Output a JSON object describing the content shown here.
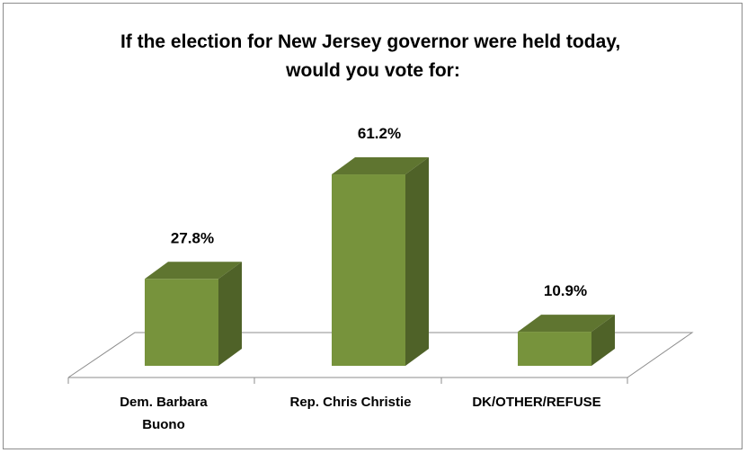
{
  "chart_data": {
    "type": "bar",
    "title": "If the election for New Jersey governor were held today, would you vote for:",
    "title_lines": [
      "If the election for New Jersey governor were held today,",
      "would you vote for:"
    ],
    "categories": [
      "Dem. Barbara Buono",
      "Rep. Chris Christie",
      "DK/OTHER/REFUSE"
    ],
    "category_lines": [
      [
        "Dem. Barbara",
        "Buono"
      ],
      [
        "Rep. Chris Christie"
      ],
      [
        "DK/OTHER/REFUSE"
      ]
    ],
    "values": [
      27.8,
      61.2,
      10.9
    ],
    "value_labels": [
      "27.8%",
      "61.2%",
      "10.9%"
    ],
    "unit": "%",
    "ylim": [
      0,
      70
    ],
    "grid": false,
    "legend": "none",
    "style": "3d",
    "colors": {
      "bar_front": "#77933c",
      "bar_side": "#4f6228",
      "bar_top": "#5f7530",
      "floor_line": "#8c8c8c"
    }
  }
}
